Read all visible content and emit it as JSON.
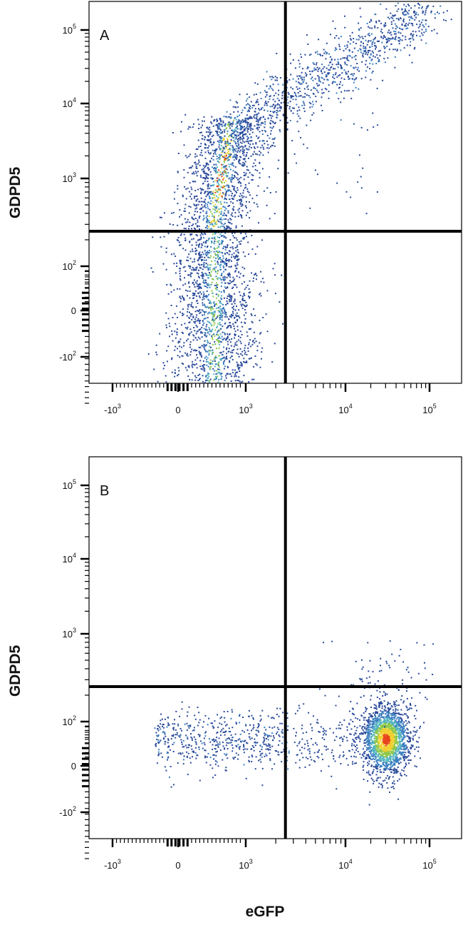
{
  "chart_data": [
    {
      "type": "scatter",
      "subtype": "flow-cytometry-density-dot-plot",
      "panel_label": "A",
      "xlabel": "eGFP",
      "ylabel": "GDPD5",
      "x_scale": "biexponential",
      "y_scale": "biexponential",
      "xticks": [
        {
          "value": -1000,
          "base": "-10",
          "exp": "3"
        },
        {
          "value": 0,
          "base": "0",
          "exp": ""
        },
        {
          "value": 1000,
          "base": "10",
          "exp": "3"
        },
        {
          "value": 10000,
          "base": "10",
          "exp": "4"
        },
        {
          "value": 100000,
          "base": "10",
          "exp": "5"
        }
      ],
      "yticks": [
        {
          "value": -100,
          "base": "-10",
          "exp": "2"
        },
        {
          "value": 0,
          "base": "0",
          "exp": ""
        },
        {
          "value": 100,
          "base": "10",
          "exp": "2"
        },
        {
          "value": 1000,
          "base": "10",
          "exp": "3"
        },
        {
          "value": 10000,
          "base": "10",
          "exp": "4"
        },
        {
          "value": 100000,
          "base": "10",
          "exp": "5"
        }
      ],
      "quadrant_gate": {
        "x": 2500,
        "y": 250
      },
      "populations": [
        {
          "description": "eGFP-negative cells spanning GDPD5 low to high",
          "x_center": 500,
          "y_range": [
            -250,
            5000
          ],
          "density": "high"
        },
        {
          "description": "eGFP-high GDPD5-high diagonal tail",
          "x_range": [
            2500,
            60000
          ],
          "y_range": [
            3000,
            200000
          ],
          "density": "moderate"
        }
      ],
      "grid": false,
      "legend": "none"
    },
    {
      "type": "scatter",
      "subtype": "flow-cytometry-density-dot-plot",
      "panel_label": "B",
      "xlabel": "eGFP",
      "ylabel": "GDPD5",
      "x_scale": "biexponential",
      "y_scale": "biexponential",
      "xticks": [
        {
          "value": -1000,
          "base": "-10",
          "exp": "3"
        },
        {
          "value": 0,
          "base": "0",
          "exp": ""
        },
        {
          "value": 1000,
          "base": "10",
          "exp": "3"
        },
        {
          "value": 10000,
          "base": "10",
          "exp": "4"
        },
        {
          "value": 100000,
          "base": "10",
          "exp": "5"
        }
      ],
      "yticks": [
        {
          "value": -100,
          "base": "-10",
          "exp": "2"
        },
        {
          "value": 0,
          "base": "0",
          "exp": ""
        },
        {
          "value": 100,
          "base": "10",
          "exp": "2"
        },
        {
          "value": 1000,
          "base": "10",
          "exp": "3"
        },
        {
          "value": 10000,
          "base": "10",
          "exp": "4"
        },
        {
          "value": 100000,
          "base": "10",
          "exp": "5"
        }
      ],
      "quadrant_gate": {
        "x": 2500,
        "y": 250
      },
      "populations": [
        {
          "description": "dense eGFP-positive GDPD5-low cluster",
          "x_center": 30000,
          "y_center": 60,
          "density": "high"
        },
        {
          "description": "sparse eGFP-negative GDPD5-low cells",
          "x_range": [
            -300,
            2500
          ],
          "y_range": [
            -100,
            150
          ],
          "density": "low"
        }
      ],
      "grid": false,
      "legend": "none"
    }
  ],
  "colors": {
    "sparse": "#2a4a9a",
    "low": "#3a7fc0",
    "mid": "#55b5c0",
    "midhigh": "#8cc84a",
    "high": "#f0d030",
    "peak": "#e8441c",
    "gate": "#000000"
  }
}
